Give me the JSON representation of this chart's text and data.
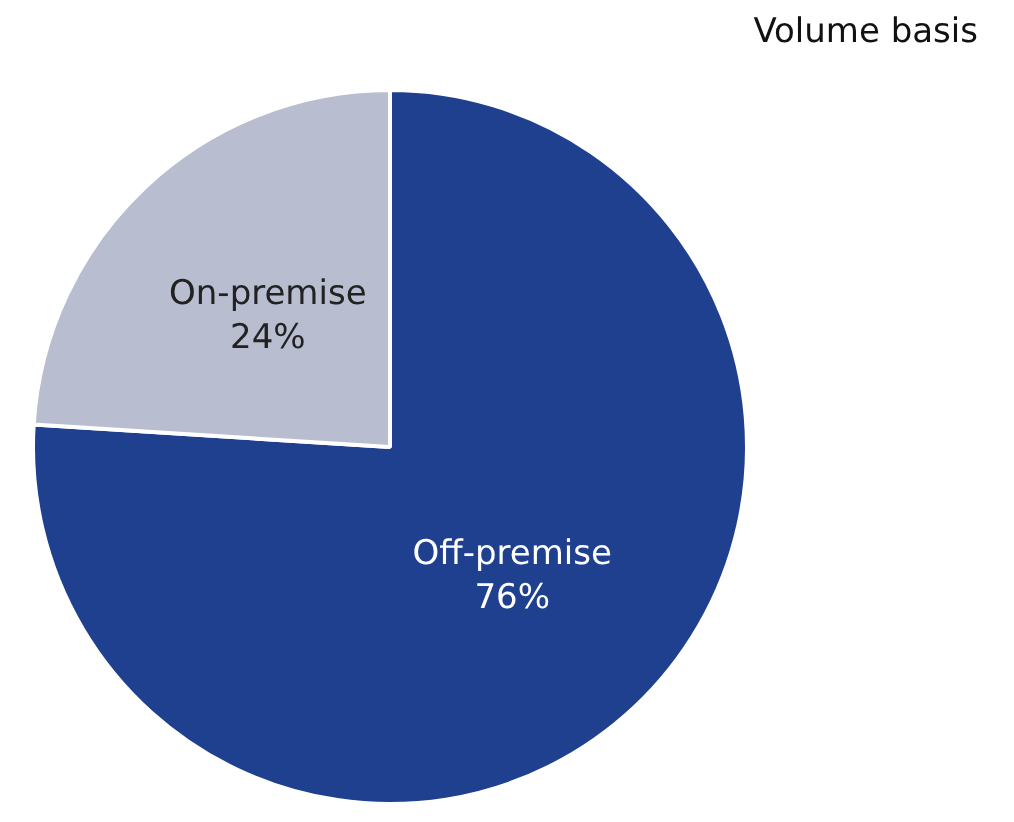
{
  "chart_data": {
    "type": "pie",
    "categories": [
      "Off-premise",
      "On-premise"
    ],
    "values": [
      76,
      24
    ],
    "colors": [
      "#1f3f8f",
      "#b8bdd0"
    ],
    "value_labels": [
      "76%",
      "24%"
    ],
    "annotations": [
      "Volume basis"
    ],
    "legend": false
  }
}
